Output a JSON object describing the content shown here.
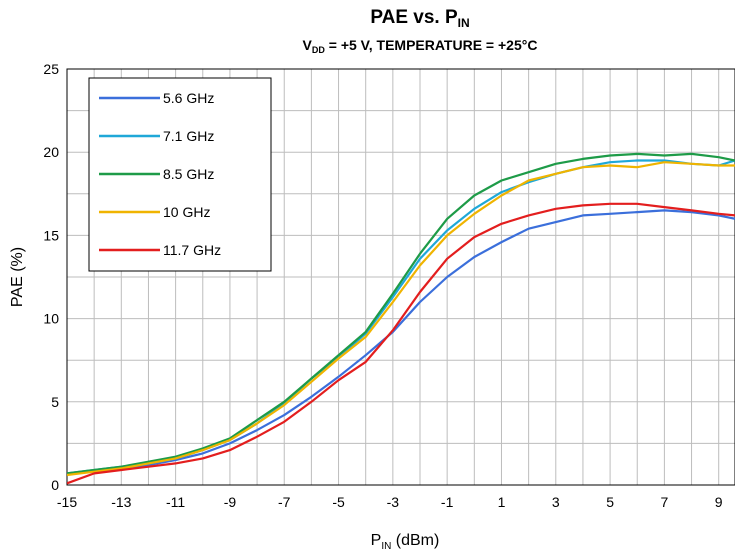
{
  "chart_data": {
    "type": "line",
    "title": "PAE vs. P",
    "title_sub": "IN",
    "subtitle_pre": "V",
    "subtitle_sub": "DD",
    "subtitle_post": " = +5 V, TEMPERATURE = +25°C",
    "xlabel_pre": "P",
    "xlabel_sub": "IN",
    "xlabel_post": " (dBm)",
    "ylabel": "PAE (%)",
    "xlim": [
      -15,
      9.6
    ],
    "ylim": [
      0,
      25
    ],
    "xticks": [
      -15,
      -13,
      -11,
      -9,
      -7,
      -5,
      -3,
      -1,
      1,
      3,
      5,
      7,
      9
    ],
    "yticks": [
      0,
      5,
      10,
      15,
      20,
      25
    ],
    "grid": true,
    "legend_position": "top-left",
    "x": [
      -15,
      -14,
      -13,
      -12,
      -11,
      -10,
      -9,
      -8,
      -7,
      -6,
      -5,
      -4,
      -3,
      -2,
      -1,
      0,
      1,
      2,
      3,
      4,
      5,
      6,
      7,
      8,
      9,
      9.6
    ],
    "series": [
      {
        "name": "5.6 GHz",
        "color": "#3b6fdb",
        "values": [
          0.7,
          0.8,
          1.0,
          1.2,
          1.5,
          1.9,
          2.5,
          3.3,
          4.2,
          5.3,
          6.5,
          7.8,
          9.2,
          11.0,
          12.5,
          13.7,
          14.6,
          15.4,
          15.8,
          16.2,
          16.3,
          16.4,
          16.5,
          16.4,
          16.2,
          16.0
        ]
      },
      {
        "name": "7.1 GHz",
        "color": "#1fa8d8",
        "values": [
          0.7,
          0.9,
          1.1,
          1.3,
          1.6,
          2.1,
          2.7,
          3.7,
          4.9,
          6.4,
          7.7,
          9.1,
          11.3,
          13.6,
          15.3,
          16.6,
          17.6,
          18.2,
          18.7,
          19.1,
          19.4,
          19.5,
          19.5,
          19.3,
          19.2,
          19.5
        ]
      },
      {
        "name": "8.5 GHz",
        "color": "#1e9b48",
        "values": [
          0.7,
          0.9,
          1.1,
          1.4,
          1.7,
          2.2,
          2.8,
          3.9,
          5.0,
          6.4,
          7.8,
          9.2,
          11.5,
          13.9,
          16.0,
          17.4,
          18.3,
          18.8,
          19.3,
          19.6,
          19.8,
          19.9,
          19.8,
          19.9,
          19.7,
          19.5
        ]
      },
      {
        "name": "10 GHz",
        "color": "#f0b400",
        "values": [
          0.6,
          0.8,
          1.0,
          1.3,
          1.6,
          2.1,
          2.7,
          3.7,
          4.8,
          6.2,
          7.6,
          8.9,
          11.0,
          13.2,
          15.0,
          16.3,
          17.4,
          18.3,
          18.7,
          19.1,
          19.2,
          19.1,
          19.4,
          19.3,
          19.2,
          19.2
        ]
      },
      {
        "name": "11.7 GHz",
        "color": "#e31e1e",
        "values": [
          0.1,
          0.7,
          0.9,
          1.1,
          1.3,
          1.6,
          2.1,
          2.9,
          3.8,
          5.0,
          6.3,
          7.4,
          9.3,
          11.6,
          13.6,
          14.9,
          15.7,
          16.2,
          16.6,
          16.8,
          16.9,
          16.9,
          16.7,
          16.5,
          16.3,
          16.2
        ]
      }
    ]
  }
}
